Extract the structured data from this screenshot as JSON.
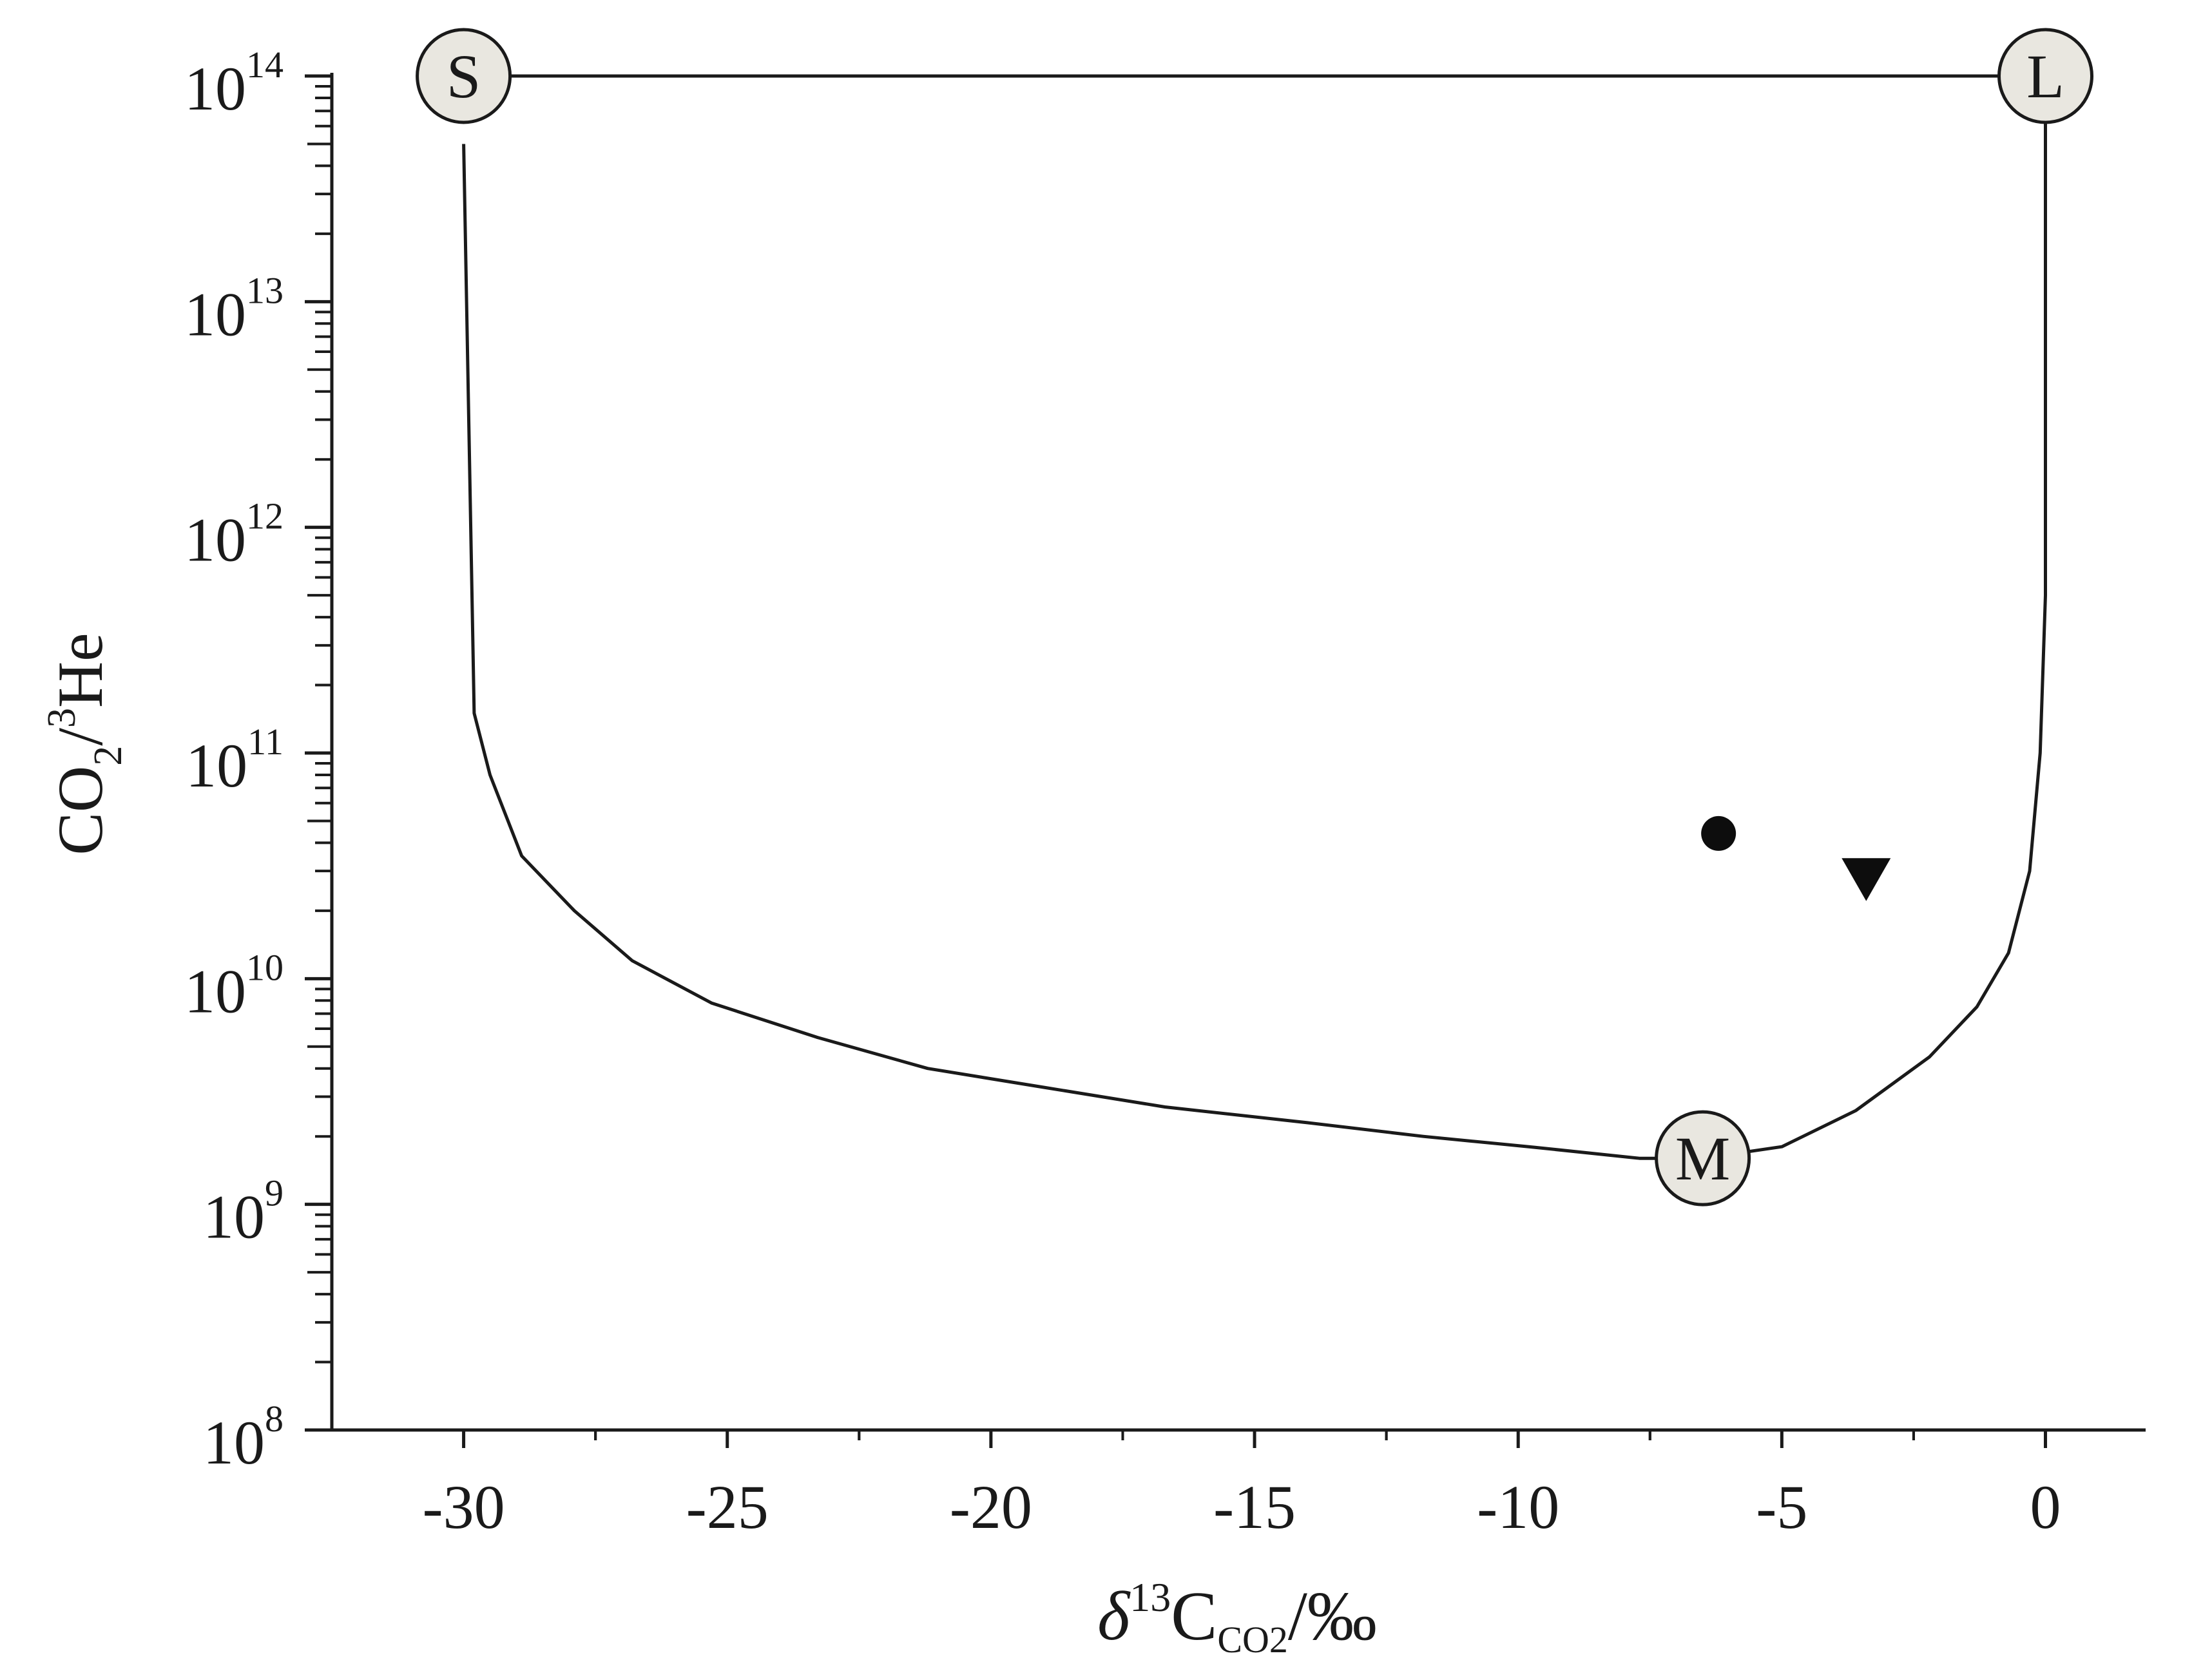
{
  "chart_data": {
    "type": "scatter",
    "title": "",
    "xlabel": {
      "delta": "δ",
      "mass": "13",
      "element": "C",
      "sub": "CO2",
      "unit": "/‰"
    },
    "ylabel": {
      "base": "CO",
      "sub": "2",
      "slash": "/",
      "mass": "3",
      "element": "He"
    },
    "x_axis": {
      "scale": "linear",
      "range": [
        -32.5,
        1.9
      ],
      "ticks": [
        -30,
        -25,
        -20,
        -15,
        -10,
        -5,
        0
      ],
      "tick_labels": [
        "-30",
        "-25",
        "-20",
        "-15",
        "-10",
        "-5",
        "0"
      ]
    },
    "y_axis": {
      "scale": "log",
      "range": [
        100000000.0,
        100000000000000.0
      ],
      "decades": [
        {
          "value": 100000000.0,
          "base": "10",
          "exp": "8"
        },
        {
          "value": 1000000000.0,
          "base": "10",
          "exp": "9"
        },
        {
          "value": 10000000000.0,
          "base": "10",
          "exp": "10"
        },
        {
          "value": 100000000000.0,
          "base": "10",
          "exp": "11"
        },
        {
          "value": 1000000000000.0,
          "base": "10",
          "exp": "12"
        },
        {
          "value": 10000000000000.0,
          "base": "10",
          "exp": "13"
        },
        {
          "value": 100000000000000.0,
          "base": "10",
          "exp": "14"
        }
      ]
    },
    "grid": false,
    "end_members": [
      {
        "label": "S",
        "x": -30,
        "y": 100000000000000.0
      },
      {
        "label": "L",
        "x": 0,
        "y": 100000000000000.0
      },
      {
        "label": "M",
        "x": -6.5,
        "y": 1600000000.0
      }
    ],
    "mixing_curves": [
      {
        "points": [
          [
            -30,
            100000000000000.0
          ],
          [
            0,
            100000000000000.0
          ]
        ]
      },
      {
        "points": [
          [
            -30,
            50000000000000.0
          ],
          [
            -29.8,
            150000000000.0
          ],
          [
            -29.5,
            80000000000.0
          ],
          [
            -28.9,
            35000000000.0
          ],
          [
            -27.9,
            20000000000.0
          ],
          [
            -26.8,
            12000000000.0
          ],
          [
            -25.3,
            7800000000.0
          ],
          [
            -23.3,
            5500000000.0
          ],
          [
            -21.2,
            4000000000.0
          ],
          [
            -19,
            3300000000.0
          ],
          [
            -16.7,
            2700000000.0
          ],
          [
            -14,
            2300000000.0
          ],
          [
            -11.8,
            2000000000.0
          ],
          [
            -9.8,
            1800000000.0
          ],
          [
            -7.7,
            1600000000.0
          ],
          [
            -6.5,
            1600000000.0
          ]
        ]
      },
      {
        "points": [
          [
            -6.5,
            1600000000.0
          ],
          [
            -5,
            1800000000.0
          ],
          [
            -3.6,
            2600000000.0
          ],
          [
            -2.2,
            4500000000.0
          ],
          [
            -1.3,
            7500000000.0
          ],
          [
            -0.7,
            13000000000.0
          ],
          [
            -0.3,
            30000000000.0
          ],
          [
            -0.1,
            100000000000.0
          ],
          [
            0,
            500000000000.0
          ],
          [
            0,
            100000000000000.0
          ]
        ]
      }
    ],
    "series": [
      {
        "marker": "circle",
        "points": [
          {
            "x": -6.2,
            "y": 44000000000.0
          }
        ]
      },
      {
        "marker": "triangle-down",
        "points": [
          {
            "x": -3.4,
            "y": 28000000000.0
          }
        ]
      }
    ],
    "colors": {
      "line": "#1a1a1a",
      "end_member_fill": "#e9e7e0",
      "marker": "#0d0d0d",
      "text": "#1a1a1a"
    }
  }
}
